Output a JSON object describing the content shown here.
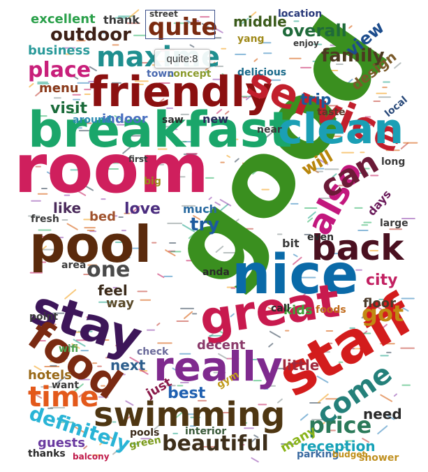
{
  "chart_data": {
    "type": "wordcloud",
    "tooltip": "quite:8",
    "highlighted_word": "quite",
    "words": [
      {
        "text": "good",
        "color": "#3a8f1f"
      },
      {
        "text": "room",
        "color": "#cf1f5d"
      },
      {
        "text": "breakfast",
        "color": "#1aa66a"
      },
      {
        "text": "staff",
        "color": "#d31c1c"
      },
      {
        "text": "nice",
        "color": "#0a6aa8"
      },
      {
        "text": "pool",
        "color": "#5a2a0c"
      },
      {
        "text": "stay",
        "color": "#3d1659"
      },
      {
        "text": "great",
        "color": "#c81a4e"
      },
      {
        "text": "friendly",
        "color": "#8b1010"
      },
      {
        "text": "service",
        "color": "#c21f2c"
      },
      {
        "text": "clean",
        "color": "#1b9fb5"
      },
      {
        "text": "food",
        "color": "#7a2a12"
      },
      {
        "text": "really",
        "color": "#7f2a8e"
      },
      {
        "text": "swimming",
        "color": "#4e3612"
      },
      {
        "text": "also",
        "color": "#c2177d"
      },
      {
        "text": "back",
        "color": "#4a1020"
      },
      {
        "text": "can",
        "color": "#6b1a37"
      },
      {
        "text": "come",
        "color": "#24807a"
      },
      {
        "text": "time",
        "color": "#e3591b"
      },
      {
        "text": "maxime",
        "color": "#1f8f8f"
      },
      {
        "text": "beautiful",
        "color": "#3d2e1a"
      },
      {
        "text": "price",
        "color": "#2b7a5a"
      },
      {
        "text": "got",
        "color": "#c18a12"
      },
      {
        "text": "one",
        "color": "#4a4a4a"
      },
      {
        "text": "definitely",
        "color": "#29b4d6"
      },
      {
        "text": "family",
        "color": "#4b3a21"
      },
      {
        "text": "place",
        "color": "#c81f7a"
      },
      {
        "text": "quite",
        "color": "#7a2a10"
      },
      {
        "text": "outdoor",
        "color": "#3d2016"
      },
      {
        "text": "overall",
        "color": "#1f6a3a"
      },
      {
        "text": "view",
        "color": "#1c4c8c"
      },
      {
        "text": "will",
        "color": "#b8860b"
      },
      {
        "text": "best",
        "color": "#1e5fb0"
      },
      {
        "text": "next",
        "color": "#2c5e8c"
      },
      {
        "text": "try",
        "color": "#1d5a9e"
      },
      {
        "text": "love",
        "color": "#4b2d7f"
      },
      {
        "text": "visit",
        "color": "#1a6b3a"
      },
      {
        "text": "city",
        "color": "#c22061"
      },
      {
        "text": "kids",
        "color": "#3fa33a"
      },
      {
        "text": "reception",
        "color": "#17a2b8"
      },
      {
        "text": "design",
        "color": "#7a5a2a"
      },
      {
        "text": "trip",
        "color": "#1a5c9a"
      },
      {
        "text": "business",
        "color": "#2a9a9a"
      },
      {
        "text": "excellent",
        "color": "#2aa04a"
      },
      {
        "text": "menu",
        "color": "#8a3a1a"
      },
      {
        "text": "indoor",
        "color": "#4a70c0"
      },
      {
        "text": "like",
        "color": "#4a2a5a"
      },
      {
        "text": "bed",
        "color": "#a0522d"
      },
      {
        "text": "feel",
        "color": "#3a2a1a"
      },
      {
        "text": "middle",
        "color": "#3a5a1a"
      },
      {
        "text": "need",
        "color": "#2a2a2a"
      },
      {
        "text": "many",
        "color": "#8ab41a"
      },
      {
        "text": "guests",
        "color": "#6a3aa0"
      },
      {
        "text": "hotels",
        "color": "#9a6a1a"
      },
      {
        "text": "floor",
        "color": "#4a3a2a"
      },
      {
        "text": "decent",
        "color": "#8a3a6a"
      },
      {
        "text": "little",
        "color": "#a0283c"
      },
      {
        "text": "interior",
        "color": "#3a5a3a"
      },
      {
        "text": "parking",
        "color": "#3a6aa0"
      },
      {
        "text": "shower",
        "color": "#c09020"
      },
      {
        "text": "thank",
        "color": "#3a3a3a"
      },
      {
        "text": "yang",
        "color": "#a08a1a"
      },
      {
        "text": "new",
        "color": "#2a2a5a"
      },
      {
        "text": "taste",
        "color": "#5a3a2a"
      },
      {
        "text": "days",
        "color": "#6a1a5a"
      },
      {
        "text": "large",
        "color": "#3a3a3a"
      },
      {
        "text": "much",
        "color": "#2a6aa0"
      },
      {
        "text": "way",
        "color": "#5a4a2a"
      },
      {
        "text": "bit",
        "color": "#3a3a3a"
      },
      {
        "text": "even",
        "color": "#2a2a2a"
      },
      {
        "text": "foods",
        "color": "#c06a1a"
      },
      {
        "text": "check",
        "color": "#6a6a9a"
      },
      {
        "text": "pools",
        "color": "#3a2a1a"
      },
      {
        "text": "green",
        "color": "#7a9a1a"
      },
      {
        "text": "thanks",
        "color": "#2a2a2a"
      },
      {
        "text": "location",
        "color": "#2a3a7a"
      },
      {
        "text": "delicious",
        "color": "#1a6a8a"
      },
      {
        "text": "concept",
        "color": "#8a9a2a"
      },
      {
        "text": "town",
        "color": "#4a6ab0"
      },
      {
        "text": "around",
        "color": "#2a8ab0"
      },
      {
        "text": "saw",
        "color": "#2a2a2a"
      },
      {
        "text": "first",
        "color": "#3a3a3a"
      },
      {
        "text": "big",
        "color": "#9a8a1a"
      },
      {
        "text": "fresh",
        "color": "#3a3a3a"
      },
      {
        "text": "anda",
        "color": "#2a2a2a"
      },
      {
        "text": "call",
        "color": "#2a2a2a"
      },
      {
        "text": "want",
        "color": "#3a3a3a"
      },
      {
        "text": "point",
        "color": "#3a3a3a"
      },
      {
        "text": "area",
        "color": "#3a3a3a"
      },
      {
        "text": "wifi",
        "color": "#4aa04a"
      },
      {
        "text": "just",
        "color": "#8a1a4a"
      },
      {
        "text": "gym",
        "color": "#c09a1a"
      },
      {
        "text": "near",
        "color": "#3a3a3a"
      },
      {
        "text": "long",
        "color": "#3a3a3a"
      },
      {
        "text": "local",
        "color": "#2a4a7a"
      },
      {
        "text": "street",
        "color": "#3a3a3a"
      },
      {
        "text": "enjoy",
        "color": "#3a3a3a"
      },
      {
        "text": "budget",
        "color": "#c0901a"
      },
      {
        "text": "balcony",
        "color": "#c01a4a"
      }
    ]
  }
}
